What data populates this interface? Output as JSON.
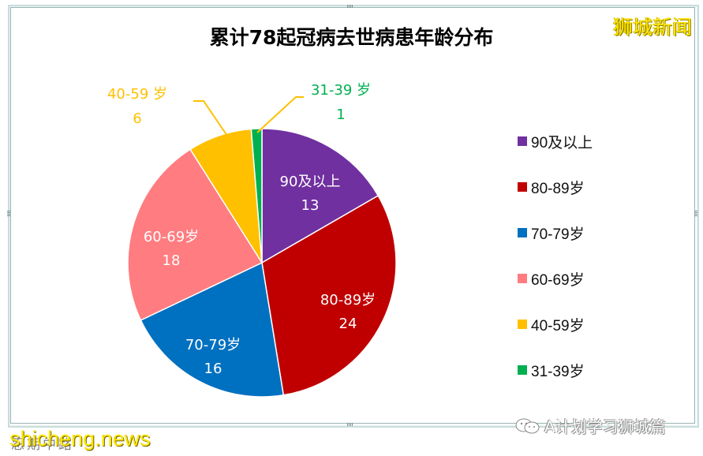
{
  "title": "累计78起冠病去世病患年龄分布",
  "watermarks": {
    "top_right": "狮城新闻",
    "bottom_left": "shicheng.news",
    "bottom_left_ghost": "忍期中路",
    "bottom_right": "A计划学习狮城篇",
    "bottom_right_icon": "wechat-icon"
  },
  "legend": {
    "position": "right",
    "items": [
      {
        "label": "90及以上",
        "color": "#7030a0"
      },
      {
        "label": "80-89岁",
        "color": "#c00000"
      },
      {
        "label": "70-79岁",
        "color": "#0070c0"
      },
      {
        "label": "60-69岁",
        "color": "#ff7c80"
      },
      {
        "label": "40-59岁",
        "color": "#ffc000"
      },
      {
        "label": "31-39岁",
        "color": "#00b050"
      }
    ]
  },
  "slice_labels": [
    {
      "name": "90及以上",
      "value": "13"
    },
    {
      "name": "80-89岁",
      "value": "24"
    },
    {
      "name": "70-79岁",
      "value": "16"
    },
    {
      "name": "60-69岁",
      "value": "18"
    },
    {
      "name": "40-59 岁",
      "value": "6"
    },
    {
      "name": "31-39 岁",
      "value": "1"
    }
  ],
  "chart_data": {
    "type": "pie",
    "title": "累计78起冠病去世病患年龄分布",
    "categories": [
      "90及以上",
      "80-89岁",
      "70-79岁",
      "60-69岁",
      "40-59岁",
      "31-39岁"
    ],
    "values": [
      13,
      24,
      16,
      18,
      6,
      1
    ],
    "colors": [
      "#7030a0",
      "#c00000",
      "#0070c0",
      "#ff7c80",
      "#ffc000",
      "#00b050"
    ],
    "total": 78,
    "start_angle": "12 o'clock, clockwise",
    "legend_position": "right",
    "data_labels": "category name and value"
  }
}
